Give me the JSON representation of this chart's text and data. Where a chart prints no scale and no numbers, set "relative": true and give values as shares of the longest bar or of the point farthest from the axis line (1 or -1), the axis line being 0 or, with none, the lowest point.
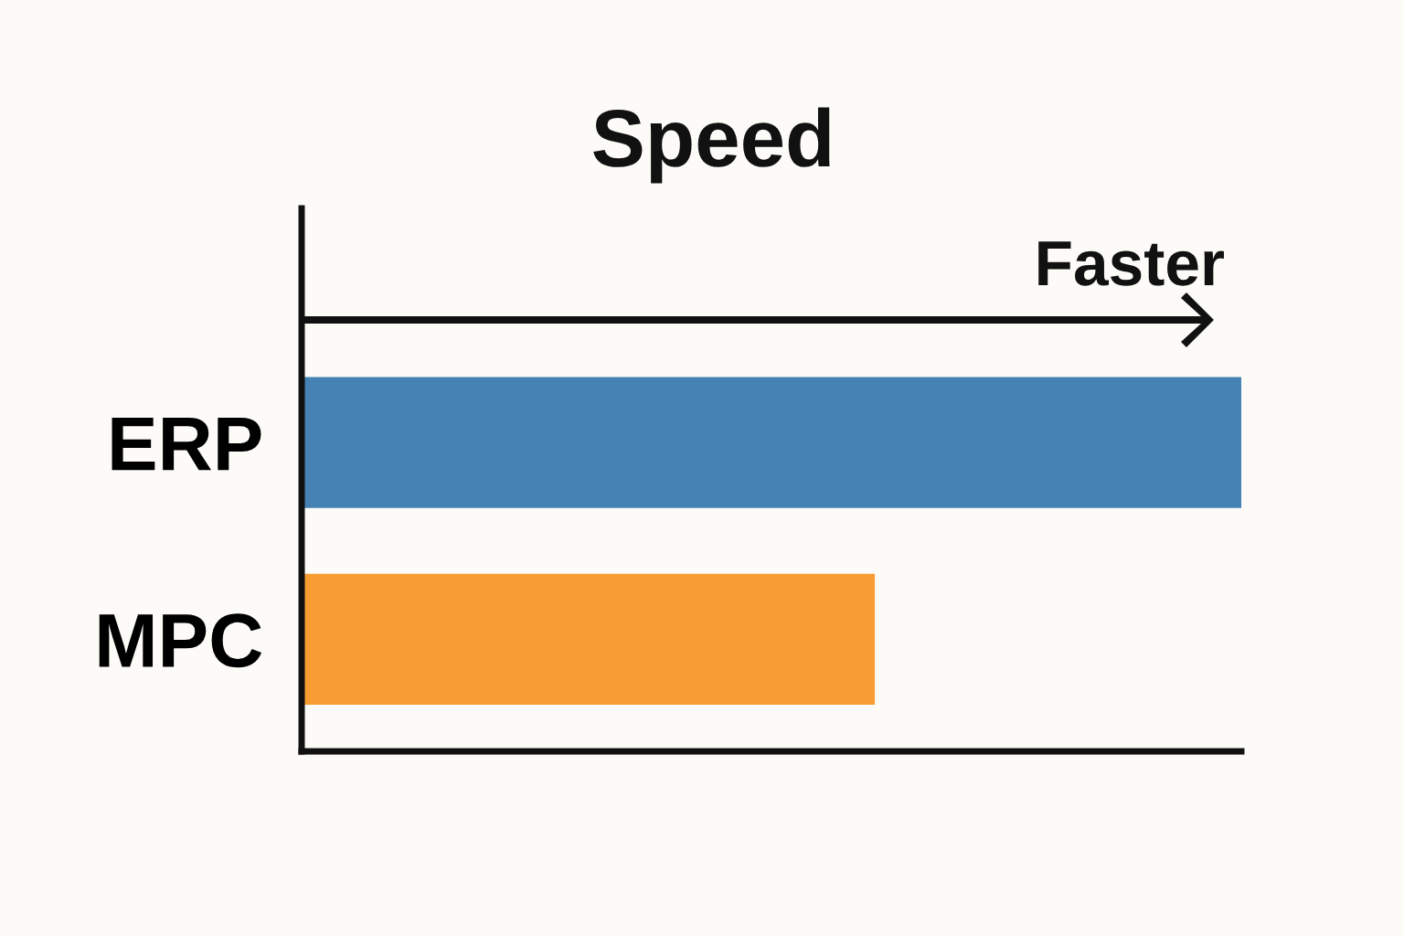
{
  "chart_data": {
    "type": "bar",
    "orientation": "horizontal",
    "relative": true,
    "title": "Speed",
    "categories": [
      "ERP",
      "MPC"
    ],
    "values": [
      1,
      0.61
    ],
    "colors": [
      "#4682b4",
      "#f79d33"
    ],
    "annotations": [
      "Faster"
    ],
    "grid": false,
    "legend": false
  }
}
